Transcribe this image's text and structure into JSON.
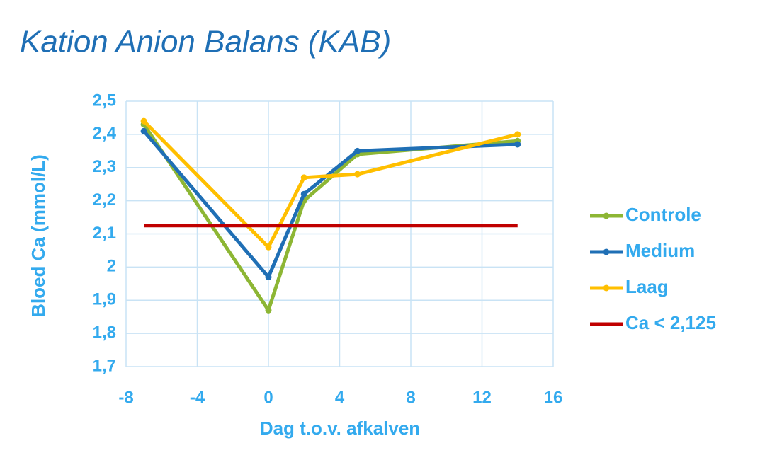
{
  "chart_data": {
    "type": "line",
    "title": "Kation Anion Balans (KAB)",
    "y_label": "Bloed Ca (mmol/L)",
    "x_label": "Dag t.o.v. afkalven",
    "xlim": [
      -8,
      16
    ],
    "xticks": [
      -8,
      -4,
      0,
      4,
      8,
      12,
      16
    ],
    "ylim": [
      1.7,
      2.5
    ],
    "yticks": [
      {
        "value": 1.7,
        "label": "1,7"
      },
      {
        "value": 1.8,
        "label": "1,8"
      },
      {
        "value": 1.9,
        "label": "1,9"
      },
      2,
      {
        "value": 2.1,
        "label": "2,1"
      },
      {
        "value": 2.2,
        "label": "2,2"
      },
      {
        "value": 2.3,
        "label": "2,3"
      },
      {
        "value": 2.4,
        "label": "2,4"
      },
      {
        "value": 2.5,
        "label": "2,5"
      }
    ],
    "grid": true,
    "legend": "right",
    "series": [
      {
        "name": "Controle",
        "color": "#8db634",
        "markers": true,
        "x": [
          -7,
          0,
          2,
          5,
          14
        ],
        "values": [
          2.43,
          1.87,
          2.2,
          2.34,
          2.38
        ]
      },
      {
        "name": "Medium",
        "color": "#1f6fb5",
        "markers": true,
        "x": [
          -7,
          0,
          2,
          5,
          14
        ],
        "values": [
          2.41,
          1.97,
          2.22,
          2.35,
          2.37
        ]
      },
      {
        "name": "Laag",
        "color": "#ffbf00",
        "markers": true,
        "x": [
          -7,
          0,
          2,
          5,
          14
        ],
        "values": [
          2.44,
          2.06,
          2.27,
          2.28,
          2.4
        ]
      },
      {
        "name": "Ca < 2,125",
        "color": "#c00000",
        "markers": false,
        "x": [
          -7,
          14
        ],
        "values": [
          2.125,
          2.125
        ]
      }
    ]
  }
}
